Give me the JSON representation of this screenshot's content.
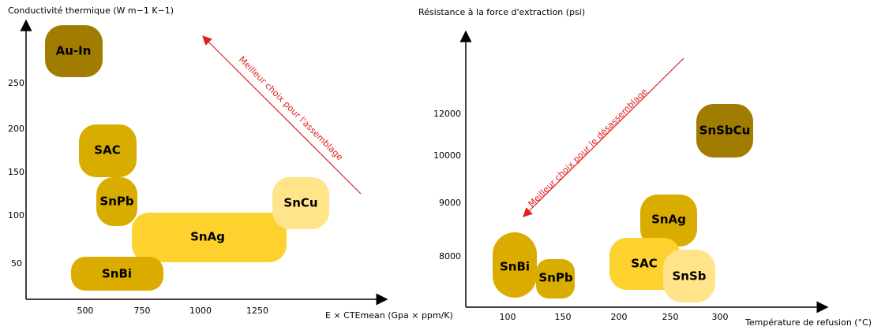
{
  "panels": [
    {
      "y_label": "Conductivité thermique (W m−1 K−1)",
      "x_label": "E × CTEmean (Gpa × ppm/K)",
      "yticks": [
        250,
        200,
        150,
        100,
        50
      ],
      "xticks": [
        500,
        750,
        1000,
        1250
      ],
      "annotation": "Meilleur choix pour l'assemblage",
      "nodes": [
        {
          "label": "Au-In"
        },
        {
          "label": "SAC"
        },
        {
          "label": "SnPb"
        },
        {
          "label": "SnAg"
        },
        {
          "label": "SnCu"
        },
        {
          "label": "SnBi"
        }
      ]
    },
    {
      "y_label": "Résistance à la force d'extraction (psi)",
      "x_label": "Température de refusion (°C)",
      "yticks": [
        12000,
        10000,
        9000,
        8000
      ],
      "xticks": [
        100,
        150,
        200,
        250,
        300
      ],
      "annotation": "Meilleur choix pour le désassemblage",
      "nodes": [
        {
          "label": "SnSbCu"
        },
        {
          "label": "SnAg"
        },
        {
          "label": "SAC"
        },
        {
          "label": "SnSb"
        },
        {
          "label": "SnBi"
        },
        {
          "label": "SnPb"
        }
      ]
    }
  ]
}
